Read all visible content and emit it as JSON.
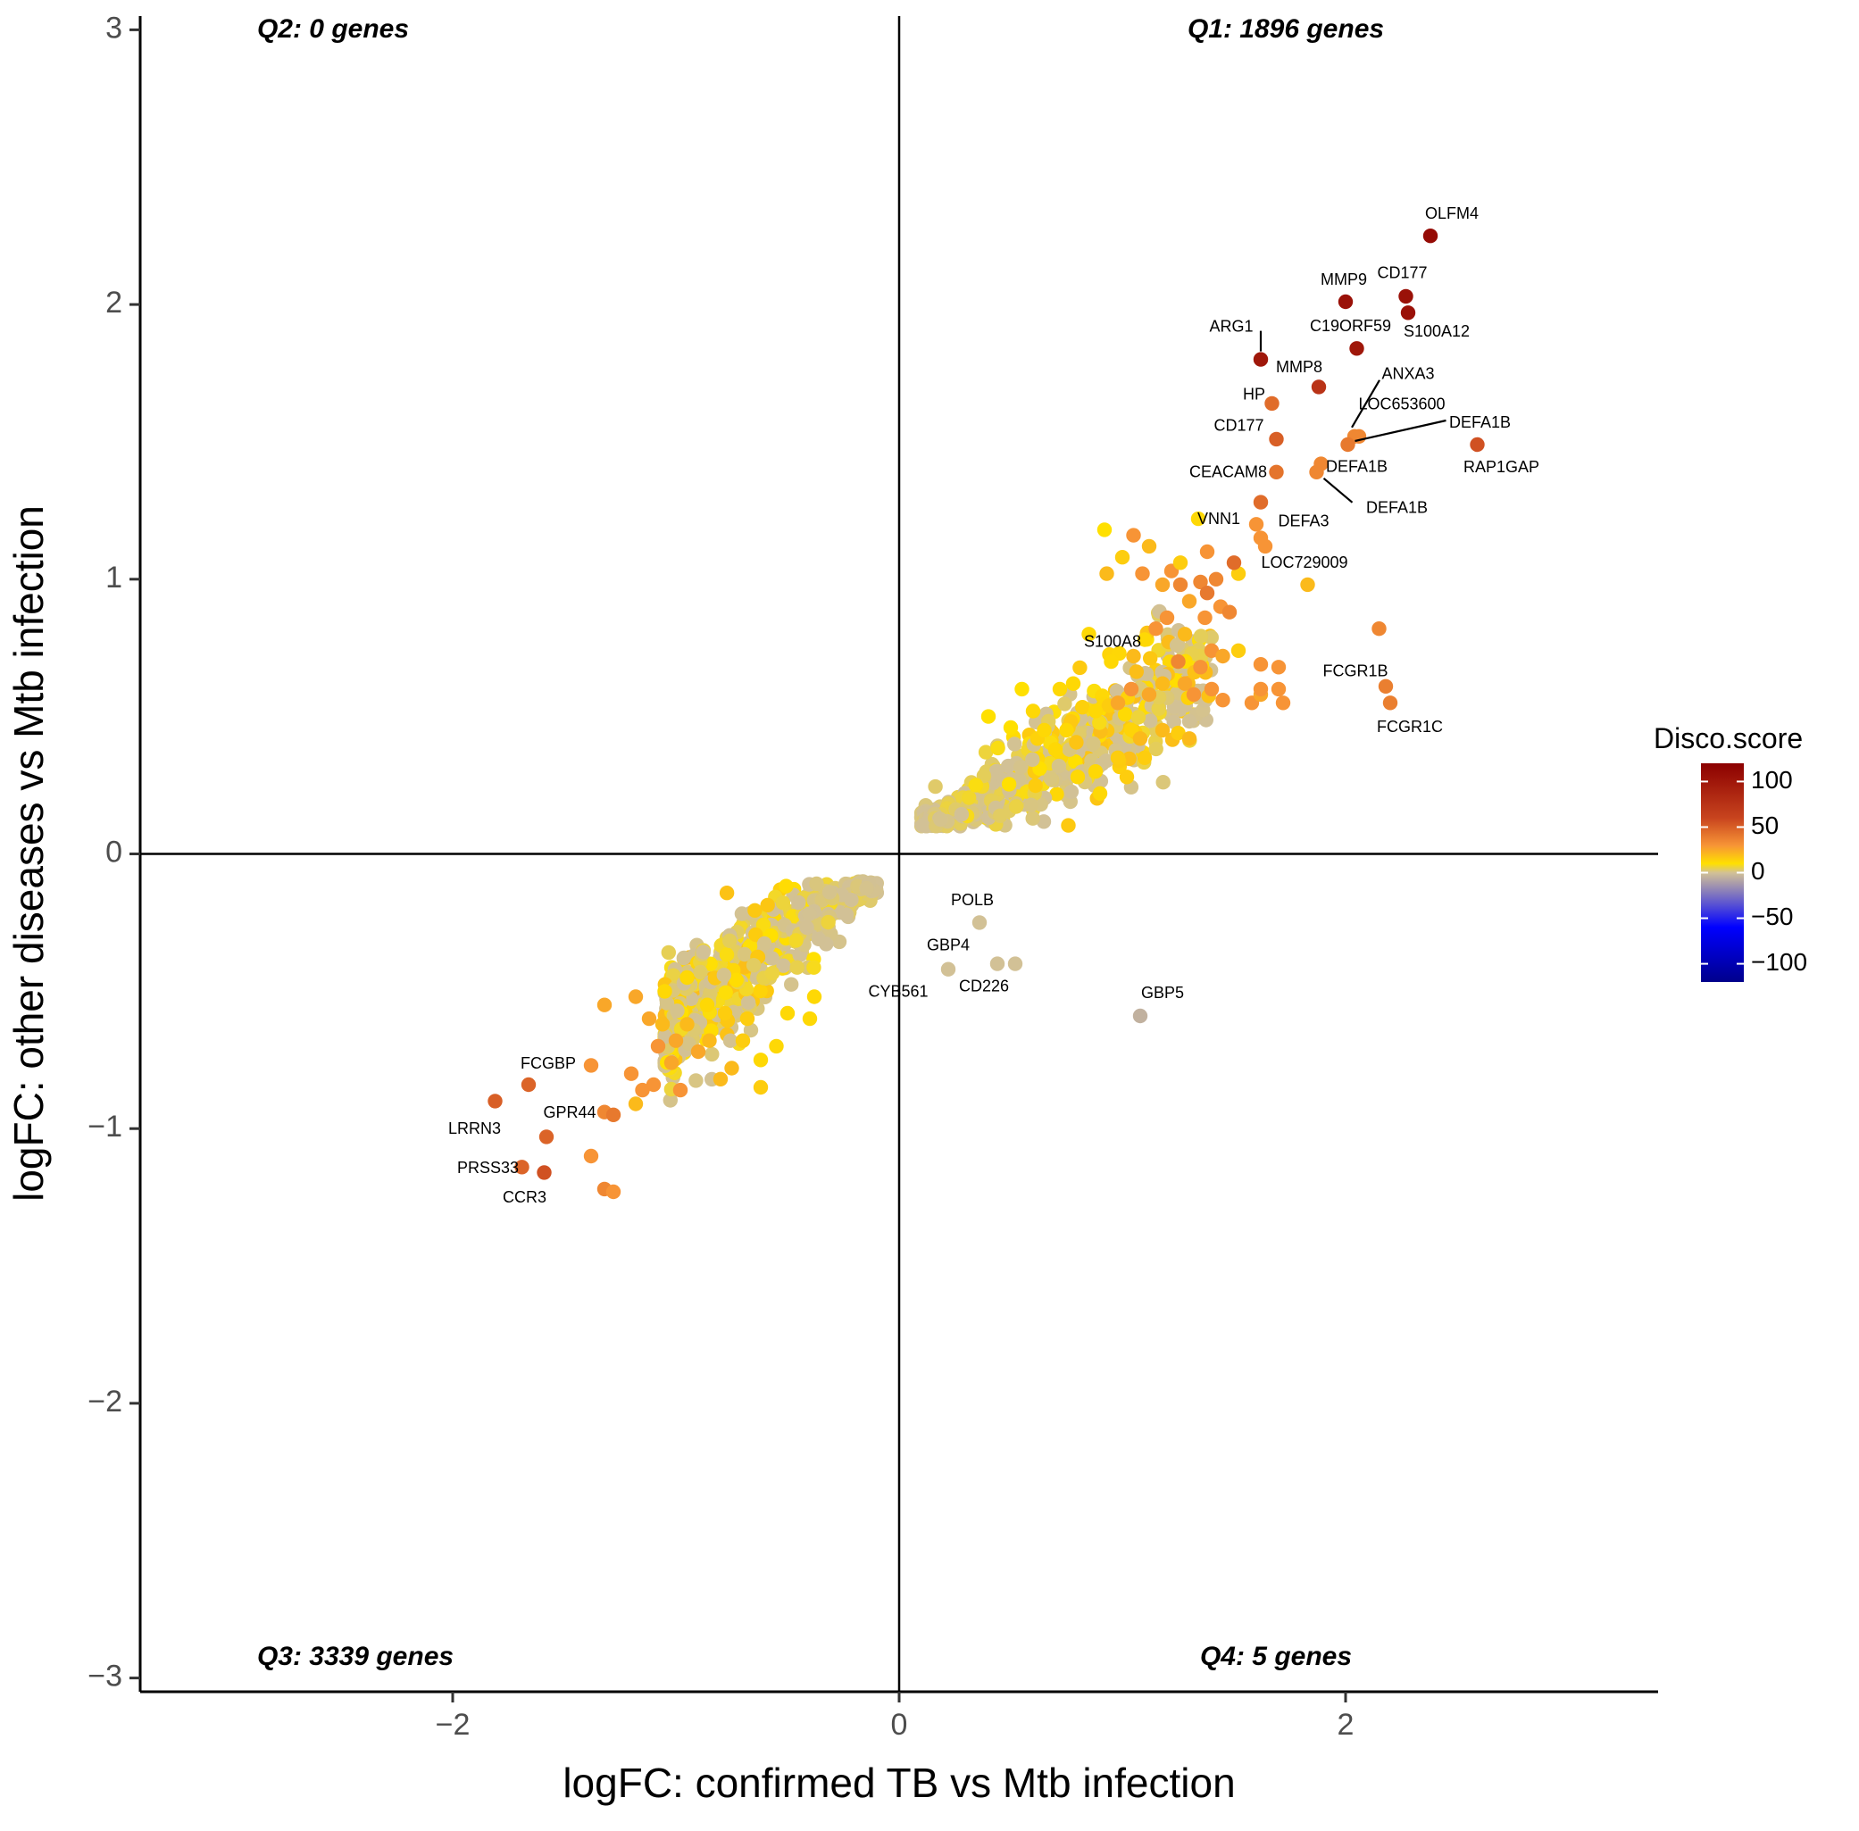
{
  "chart_data": {
    "type": "scatter",
    "xlabel": "logFC: confirmed TB vs Mtb infection",
    "ylabel": "logFC: other diseases vs Mtb infection",
    "xlim": [
      -3.4,
      3.4
    ],
    "ylim": [
      -3.05,
      3.05
    ],
    "x_ticks": [
      {
        "value": -2,
        "label": "−2"
      },
      {
        "value": 0,
        "label": "0"
      },
      {
        "value": 2,
        "label": "2"
      }
    ],
    "y_ticks": [
      {
        "value": 3,
        "label": "3"
      },
      {
        "value": 2,
        "label": "2"
      },
      {
        "value": 1,
        "label": "1"
      },
      {
        "value": 0,
        "label": "0"
      },
      {
        "value": -1,
        "label": "−1"
      },
      {
        "value": -2,
        "label": "−2"
      },
      {
        "value": -3,
        "label": "−3"
      }
    ],
    "grid": false,
    "reference_lines": {
      "x": 0,
      "y": 0
    },
    "quadrant_labels": [
      {
        "id": "q1",
        "text": "Q1: 1896 genes",
        "position": "top-right"
      },
      {
        "id": "q2",
        "text": "Q2: 0 genes",
        "position": "top-left"
      },
      {
        "id": "q3",
        "text": "Q3: 3339 genes",
        "position": "bottom-left"
      },
      {
        "id": "q4",
        "text": "Q4: 5 genes",
        "position": "bottom-right"
      }
    ],
    "color_scale": {
      "title": "Disco.score",
      "range": [
        -120,
        120
      ],
      "ticks": [
        {
          "value": 100,
          "label": "100"
        },
        {
          "value": 50,
          "label": "50"
        },
        {
          "value": 0,
          "label": "0"
        },
        {
          "value": -50,
          "label": "−50"
        },
        {
          "value": -100,
          "label": "−100"
        }
      ],
      "stops": [
        {
          "value": -120,
          "color": "#00008b"
        },
        {
          "value": -60,
          "color": "#0000ff"
        },
        {
          "value": 0,
          "color": "#d2c196"
        },
        {
          "value": 10,
          "color": "#ffe000"
        },
        {
          "value": 30,
          "color": "#f79436"
        },
        {
          "value": 60,
          "color": "#c8441e"
        },
        {
          "value": 120,
          "color": "#8b0000"
        }
      ],
      "legend_position": "right"
    },
    "labeled_points": [
      {
        "gene": "OLFM4",
        "x": 2.38,
        "y": 2.25,
        "score": 110
      },
      {
        "gene": "MMP9",
        "x": 2.0,
        "y": 2.01,
        "score": 105
      },
      {
        "gene": "CD177",
        "x": 2.27,
        "y": 2.03,
        "score": 105
      },
      {
        "gene": "S100A12",
        "x": 2.28,
        "y": 1.97,
        "score": 105
      },
      {
        "gene": "C19ORF59",
        "x": 2.05,
        "y": 1.84,
        "score": 100
      },
      {
        "gene": "ARG1",
        "x": 1.62,
        "y": 1.8,
        "score": 100
      },
      {
        "gene": "MMP8",
        "x": 1.88,
        "y": 1.7,
        "score": 75
      },
      {
        "gene": "ANXA3",
        "x": 2.06,
        "y": 1.52,
        "score": 35
      },
      {
        "gene": "LOC653600",
        "x": 2.04,
        "y": 1.52,
        "score": 35
      },
      {
        "gene": "HP",
        "x": 1.67,
        "y": 1.64,
        "score": 45
      },
      {
        "gene": "CD177",
        "x": 1.69,
        "y": 1.51,
        "score": 50
      },
      {
        "gene": "DEFA1B",
        "x": 2.01,
        "y": 1.49,
        "score": 40
      },
      {
        "gene": "RAP1GAP",
        "x": 2.59,
        "y": 1.49,
        "score": 55
      },
      {
        "gene": "CEACAM8",
        "x": 1.69,
        "y": 1.39,
        "score": 42
      },
      {
        "gene": "DEFA1B",
        "x": 1.89,
        "y": 1.42,
        "score": 35
      },
      {
        "gene": "DEFA1B",
        "x": 1.87,
        "y": 1.39,
        "score": 35
      },
      {
        "gene": "DEFA3",
        "x": 1.62,
        "y": 1.28,
        "score": 45
      },
      {
        "gene": "VNN1",
        "x": 1.34,
        "y": 1.22,
        "score": 12
      },
      {
        "gene": "LOC729009",
        "x": 1.5,
        "y": 1.06,
        "score": 45
      },
      {
        "gene": "S100A8",
        "x": 1.1,
        "y": 0.78,
        "score": 12
      },
      {
        "gene": "FCGR1B",
        "x": 2.18,
        "y": 0.61,
        "score": 38
      },
      {
        "gene": "FCGR1C",
        "x": 2.2,
        "y": 0.55,
        "score": 38
      },
      {
        "gene": "POLB",
        "x": 0.36,
        "y": -0.25,
        "score": 0
      },
      {
        "gene": "GBP4",
        "x": 0.22,
        "y": -0.42,
        "score": 0
      },
      {
        "gene": "CYB561",
        "x": 0.44,
        "y": -0.4,
        "score": 0
      },
      {
        "gene": "CD226",
        "x": 0.52,
        "y": -0.4,
        "score": 0
      },
      {
        "gene": "GBP5",
        "x": 1.08,
        "y": -0.59,
        "score": -5
      },
      {
        "gene": "FCGBP",
        "x": -1.66,
        "y": -0.84,
        "score": 48
      },
      {
        "gene": "LRRN3",
        "x": -1.81,
        "y": -0.9,
        "score": 50
      },
      {
        "gene": "GPR44",
        "x": -1.58,
        "y": -1.03,
        "score": 48
      },
      {
        "gene": "PRSS33",
        "x": -1.69,
        "y": -1.14,
        "score": 48
      },
      {
        "gene": "CCR3",
        "x": -1.59,
        "y": -1.16,
        "score": 55
      }
    ],
    "unlabeled_points": [
      [
        0.92,
        1.18,
        10
      ],
      [
        1.05,
        1.16,
        30
      ],
      [
        1.12,
        1.12,
        20
      ],
      [
        1.0,
        1.08,
        15
      ],
      [
        0.93,
        1.02,
        20
      ],
      [
        1.09,
        1.02,
        30
      ],
      [
        1.22,
        1.03,
        30
      ],
      [
        1.18,
        0.98,
        25
      ],
      [
        1.26,
        0.98,
        35
      ],
      [
        1.35,
        0.99,
        35
      ],
      [
        1.38,
        0.95,
        40
      ],
      [
        1.42,
        1.0,
        35
      ],
      [
        1.52,
        1.02,
        15
      ],
      [
        1.44,
        0.9,
        30
      ],
      [
        1.48,
        0.88,
        35
      ],
      [
        1.37,
        0.86,
        30
      ],
      [
        1.3,
        0.92,
        25
      ],
      [
        1.2,
        0.86,
        30
      ],
      [
        1.15,
        0.82,
        30
      ],
      [
        1.28,
        0.8,
        20
      ],
      [
        1.83,
        0.98,
        20
      ],
      [
        1.6,
        1.2,
        30
      ],
      [
        1.62,
        1.15,
        30
      ],
      [
        1.64,
        1.12,
        30
      ],
      [
        1.26,
        1.06,
        15
      ],
      [
        1.38,
        1.1,
        30
      ],
      [
        2.15,
        0.82,
        35
      ],
      [
        1.4,
        0.74,
        30
      ],
      [
        1.45,
        0.72,
        25
      ],
      [
        1.52,
        0.74,
        15
      ],
      [
        1.35,
        0.68,
        30
      ],
      [
        1.25,
        0.7,
        35
      ],
      [
        1.28,
        0.62,
        25
      ],
      [
        1.32,
        0.58,
        30
      ],
      [
        1.4,
        0.6,
        30
      ],
      [
        1.45,
        0.56,
        30
      ],
      [
        1.58,
        0.55,
        30
      ],
      [
        1.62,
        0.58,
        25
      ],
      [
        1.62,
        0.69,
        30
      ],
      [
        1.7,
        0.68,
        30
      ],
      [
        1.7,
        0.6,
        30
      ],
      [
        1.72,
        0.55,
        30
      ],
      [
        1.62,
        0.6,
        30
      ],
      [
        1.18,
        0.62,
        20
      ],
      [
        1.12,
        0.58,
        25
      ],
      [
        1.04,
        0.6,
        30
      ],
      [
        0.98,
        0.55,
        25
      ],
      [
        1.18,
        0.45,
        20
      ],
      [
        1.25,
        0.44,
        15
      ],
      [
        1.3,
        0.42,
        20
      ],
      [
        1.08,
        0.42,
        20
      ],
      [
        1.1,
        0.35,
        15
      ],
      [
        0.98,
        0.35,
        15
      ],
      [
        1.02,
        0.28,
        15
      ],
      [
        0.88,
        0.3,
        12
      ],
      [
        0.9,
        0.22,
        12
      ],
      [
        0.8,
        0.28,
        12
      ],
      [
        0.72,
        0.6,
        12
      ],
      [
        0.95,
        0.7,
        12
      ],
      [
        1.05,
        0.72,
        20
      ],
      [
        0.85,
        0.8,
        12
      ],
      [
        0.78,
        0.62,
        12
      ],
      [
        0.88,
        0.52,
        12
      ],
      [
        0.6,
        0.52,
        12
      ],
      [
        0.65,
        0.45,
        12
      ],
      [
        0.55,
        0.6,
        10
      ],
      [
        0.5,
        0.46,
        10
      ],
      [
        0.4,
        0.5,
        10
      ],
      [
        0.7,
        0.38,
        12
      ],
      [
        0.75,
        0.45,
        12
      ],
      [
        -1.32,
        -0.55,
        25
      ],
      [
        -1.38,
        -0.77,
        30
      ],
      [
        -1.32,
        -0.94,
        35
      ],
      [
        -1.28,
        -0.95,
        40
      ],
      [
        -1.38,
        -1.1,
        30
      ],
      [
        -1.32,
        -1.22,
        35
      ],
      [
        -1.28,
        -1.23,
        30
      ],
      [
        -1.18,
        -0.91,
        20
      ],
      [
        -1.15,
        -0.86,
        30
      ],
      [
        -1.2,
        -0.8,
        30
      ],
      [
        -1.1,
        -0.84,
        30
      ],
      [
        -1.02,
        -0.76,
        25
      ],
      [
        -0.98,
        -0.86,
        30
      ],
      [
        -0.8,
        -0.82,
        20
      ],
      [
        -0.75,
        -0.78,
        20
      ],
      [
        -0.62,
        -0.85,
        15
      ],
      [
        -0.62,
        -0.75,
        12
      ],
      [
        -0.55,
        -0.7,
        12
      ],
      [
        -1.08,
        -0.7,
        30
      ],
      [
        -1.0,
        -0.68,
        25
      ],
      [
        -1.12,
        -0.6,
        25
      ],
      [
        -1.06,
        -0.62,
        20
      ],
      [
        -0.95,
        -0.62,
        20
      ],
      [
        -0.9,
        -0.72,
        25
      ],
      [
        -0.85,
        -0.68,
        20
      ],
      [
        -0.7,
        -0.68,
        15
      ],
      [
        -0.68,
        -0.6,
        15
      ],
      [
        -0.78,
        -0.58,
        15
      ],
      [
        -0.86,
        -0.55,
        12
      ],
      [
        -1.05,
        -0.5,
        12
      ],
      [
        -1.18,
        -0.52,
        25
      ],
      [
        -0.4,
        -0.6,
        12
      ],
      [
        -0.38,
        -0.52,
        12
      ],
      [
        -0.5,
        -0.58,
        12
      ],
      [
        -0.95,
        -0.45,
        12
      ]
    ],
    "clusters": [
      {
        "quadrant": "Q1",
        "x_range": [
          0.1,
          1.4
        ],
        "slope": 0.5,
        "score_range": [
          0,
          20
        ],
        "count": 650
      },
      {
        "quadrant": "Q3",
        "x_range": [
          -1.05,
          -0.1
        ],
        "slope": 0.6,
        "score_range": [
          0,
          20
        ],
        "count": 600
      }
    ]
  }
}
